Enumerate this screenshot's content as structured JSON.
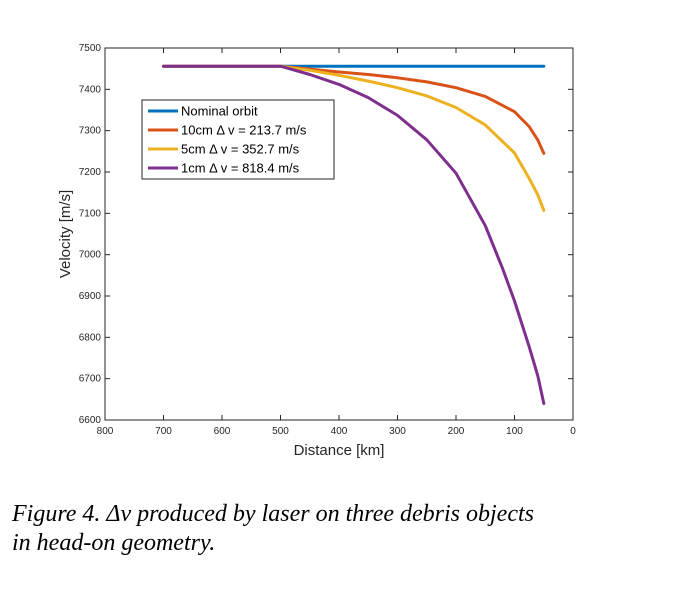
{
  "chart_data": {
    "type": "line",
    "xlabel": "Distance [km]",
    "ylabel": "Velocity [m/s]",
    "xlim": [
      800,
      0
    ],
    "ylim": [
      6600,
      7500
    ],
    "x_reversed": true,
    "xticks": [
      800,
      700,
      600,
      500,
      400,
      300,
      200,
      100,
      0
    ],
    "yticks": [
      6600,
      6700,
      6800,
      6900,
      7000,
      7100,
      7200,
      7300,
      7400,
      7500
    ],
    "grid": false,
    "legend_position": "upper-left",
    "series": [
      {
        "name": "Nominal orbit",
        "color": "#0072BD",
        "x": [
          700,
          600,
          500,
          400,
          300,
          200,
          100,
          50
        ],
        "y": [
          7456,
          7456,
          7456,
          7456,
          7456,
          7456,
          7456,
          7456
        ]
      },
      {
        "name": "10cm Δ v = 213.7 m/s",
        "color": "#D95319",
        "x": [
          700,
          600,
          500,
          450,
          400,
          350,
          300,
          250,
          200,
          150,
          100,
          75,
          60,
          50
        ],
        "y": [
          7456,
          7456,
          7456,
          7449,
          7442,
          7436,
          7428,
          7418,
          7404,
          7383,
          7346,
          7310,
          7277,
          7245
        ]
      },
      {
        "name": "5cm Δ v = 352.7 m/s",
        "color": "#EDB120",
        "x": [
          700,
          600,
          500,
          450,
          400,
          350,
          300,
          250,
          200,
          150,
          100,
          75,
          60,
          50
        ],
        "y": [
          7456,
          7456,
          7456,
          7446,
          7434,
          7420,
          7404,
          7384,
          7356,
          7314,
          7246,
          7185,
          7144,
          7107
        ]
      },
      {
        "name": "1cm Δ v = 818.4 m/s",
        "color": "#7E2F8E",
        "x": [
          700,
          600,
          500,
          450,
          400,
          350,
          300,
          250,
          200,
          150,
          120,
          100,
          75,
          60,
          50
        ],
        "y": [
          7456,
          7456,
          7456,
          7436,
          7412,
          7380,
          7337,
          7278,
          7197,
          7070,
          6965,
          6888,
          6778,
          6706,
          6640
        ]
      }
    ]
  },
  "caption": {
    "line1": "Figure 4.  Δv produced by laser on three debris objects",
    "line2": "in head-on geometry."
  }
}
